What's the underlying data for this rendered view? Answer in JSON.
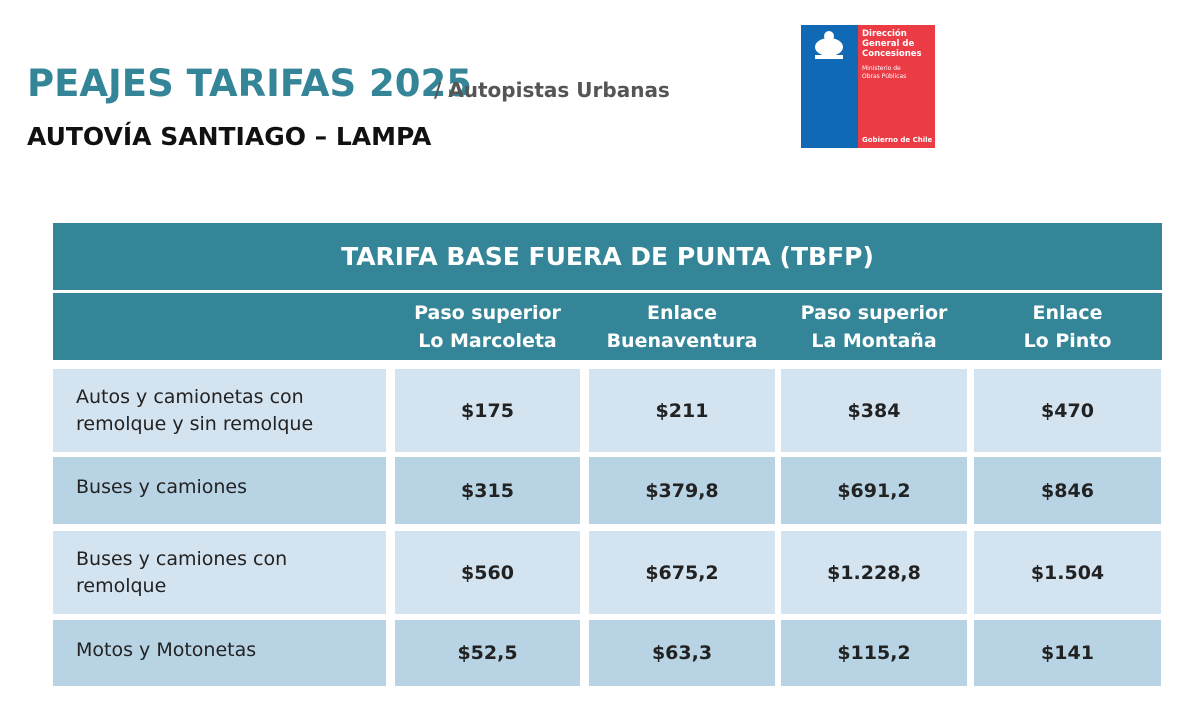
{
  "header": {
    "title": "PEAJES TARIFAS 2025",
    "subtitle": "/ Autopistas Urbanas",
    "route": "AUTOVÍA SANTIAGO – LAMPA"
  },
  "logo": {
    "name": [
      "Dirección",
      "General de",
      "Concesiones"
    ],
    "ministry": [
      "Ministerio de",
      "Obras Públicas"
    ],
    "government": "Gobierno de Chile"
  },
  "table": {
    "title": "TARIFA BASE FUERA DE PUNTA (TBFP)",
    "columns": [
      [
        "Paso superior",
        "Lo Marcoleta"
      ],
      [
        "Enlace",
        "Buenaventura"
      ],
      [
        "Paso superior",
        "La Montaña"
      ],
      [
        "Enlace",
        "Lo Pinto"
      ]
    ],
    "rows": [
      {
        "label": [
          "Autos y camionetas con",
          "remolque y sin remolque"
        ],
        "values": [
          "$175",
          "$211",
          "$384",
          "$470"
        ]
      },
      {
        "label": [
          "Buses y camiones"
        ],
        "values": [
          "$315",
          "$379,8",
          "$691,2",
          "$846"
        ]
      },
      {
        "label": [
          "Buses y camiones con",
          "remolque"
        ],
        "values": [
          "$560",
          "$675,2",
          "$1.228,8",
          "$1.504"
        ]
      },
      {
        "label": [
          "Motos y Motonetas"
        ],
        "values": [
          "$52,5",
          "$63,3",
          "$115,2",
          "$141"
        ]
      }
    ]
  }
}
